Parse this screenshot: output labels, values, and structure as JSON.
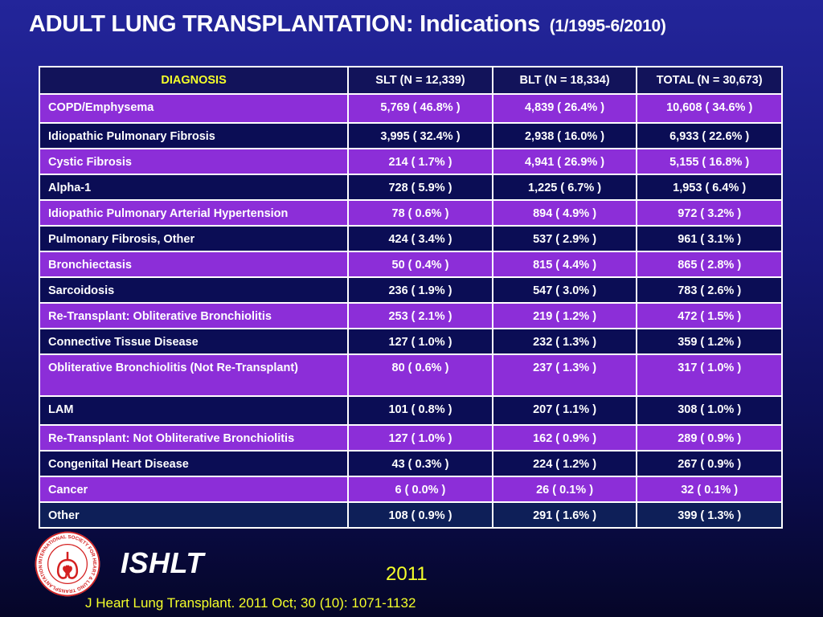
{
  "title": {
    "main": "ADULT LUNG TRANSPLANTATION: Indications",
    "range": "(1/1995-6/2010)"
  },
  "table": {
    "headers": [
      "DIAGNOSIS",
      "SLT (N = 12,339)",
      "BLT (N = 18,334)",
      "TOTAL (N = 30,673)"
    ],
    "rows": [
      [
        "COPD/Emphysema",
        "5,769 ( 46.8% )",
        "4,839 ( 26.4% )",
        "10,608 ( 34.6% )"
      ],
      [
        "Idiopathic Pulmonary Fibrosis",
        "3,995 ( 32.4% )",
        "2,938 ( 16.0% )",
        "6,933 ( 22.6% )"
      ],
      [
        "Cystic Fibrosis",
        "214 ( 1.7% )",
        "4,941 ( 26.9% )",
        "5,155 ( 16.8% )"
      ],
      [
        "Alpha-1",
        "728 ( 5.9% )",
        "1,225 ( 6.7% )",
        "1,953 ( 6.4% )"
      ],
      [
        "Idiopathic Pulmonary Arterial Hypertension",
        "78 ( 0.6% )",
        "894 ( 4.9% )",
        "972 ( 3.2% )"
      ],
      [
        "Pulmonary Fibrosis, Other",
        "424 ( 3.4% )",
        "537 ( 2.9% )",
        "961 ( 3.1% )"
      ],
      [
        "Bronchiectasis",
        "50 ( 0.4% )",
        "815 ( 4.4% )",
        "865 ( 2.8% )"
      ],
      [
        "Sarcoidosis",
        "236 ( 1.9% )",
        "547 ( 3.0% )",
        "783 ( 2.6% )"
      ],
      [
        "Re-Transplant: Obliterative Bronchiolitis",
        "253 ( 2.1% )",
        "219 ( 1.2% )",
        "472 ( 1.5% )"
      ],
      [
        "Connective Tissue Disease",
        "127 ( 1.0% )",
        "232 ( 1.3% )",
        "359 ( 1.2% )"
      ],
      [
        "Obliterative Bronchiolitis (Not Re-Transplant)",
        "80 ( 0.6% )",
        "237 ( 1.3% )",
        "317 ( 1.0% )"
      ],
      [
        "LAM",
        "101 ( 0.8% )",
        "207 ( 1.1% )",
        "308 ( 1.0% )"
      ],
      [
        "Re-Transplant: Not Obliterative Bronchiolitis",
        "127 ( 1.0% )",
        "162 ( 0.9% )",
        "289 ( 0.9% )"
      ],
      [
        "Congenital Heart Disease",
        "43 ( 0.3% )",
        "224 ( 1.2% )",
        "267 ( 0.9% )"
      ],
      [
        "Cancer",
        "6 ( 0.0% )",
        "26 ( 0.1% )",
        "32 ( 0.1% )"
      ],
      [
        "Other",
        "108 ( 0.9% )",
        "291 ( 1.6% )",
        "399 ( 1.3% )"
      ]
    ]
  },
  "footer": {
    "org": "ISHLT",
    "logo_text": "INTERNATIONAL SOCIETY FOR HEART & LUNG TRANSPLANTATION",
    "year": "2011",
    "citation": "J Heart Lung Transplant. 2011 Oct; 30 (10): 1071-1132"
  },
  "colors": {
    "heading_accent": "#f5ff2a",
    "row_purple": "#8c2ed8",
    "row_navy": "#0b0d55",
    "background": "#1a1b85"
  }
}
